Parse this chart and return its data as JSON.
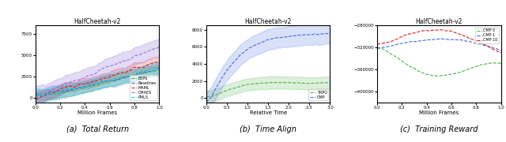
{
  "title": "HalfCheetah-v2",
  "subplot_titles": [
    "HalfCheetah-v2",
    "HalfCheetah-v2",
    "HalfCheetah-v2"
  ],
  "caption_a": "(a)  Total Return",
  "caption_b": "(b)  Time Align",
  "caption_c": "(c)  Training Reward",
  "xlabel_a": "Million Frames",
  "xlabel_b": "Relative Time",
  "xlabel_c": "Million Frames",
  "legend_a": [
    "EEPS",
    "Baselines",
    "MAML",
    "CMAES",
    "PMLS"
  ],
  "legend_b": [
    "TRPO",
    "CMP"
  ],
  "legend_c": [
    "CMP 0",
    "CMP 1",
    "CMP 10"
  ],
  "colors_a": [
    "#4daf4a",
    "#4169e1",
    "#e41a1c",
    "#9370db",
    "#00ced1"
  ],
  "colors_b": [
    "#4daf4a",
    "#4169e1"
  ],
  "colors_c": [
    "#4daf4a",
    "#4169e1",
    "#e41a1c"
  ],
  "ylim_a": [
    -500,
    8500
  ],
  "ylim_b": [
    -500,
    8500
  ],
  "ylim_c": [
    -420000,
    -280000
  ],
  "xlim_a": [
    0.0,
    1.0
  ],
  "xlim_b": [
    0.0,
    3.0
  ],
  "xlim_c": [
    0.0,
    1.0
  ],
  "yticks_a": [
    0,
    2500,
    5000,
    7500
  ],
  "yticks_b": [
    0,
    2000,
    4000,
    6000,
    8000
  ],
  "yticks_c": [
    -400000,
    -360000,
    -320000,
    -280000
  ],
  "xticks_a": [
    0.0,
    0.2,
    0.4,
    0.6,
    0.8,
    1.0
  ],
  "xticks_b": [
    0.0,
    0.5,
    1.0,
    1.5,
    2.0,
    2.5,
    3.0
  ],
  "xticks_c": [
    0.0,
    0.2,
    0.4,
    0.6,
    0.8,
    1.0
  ]
}
